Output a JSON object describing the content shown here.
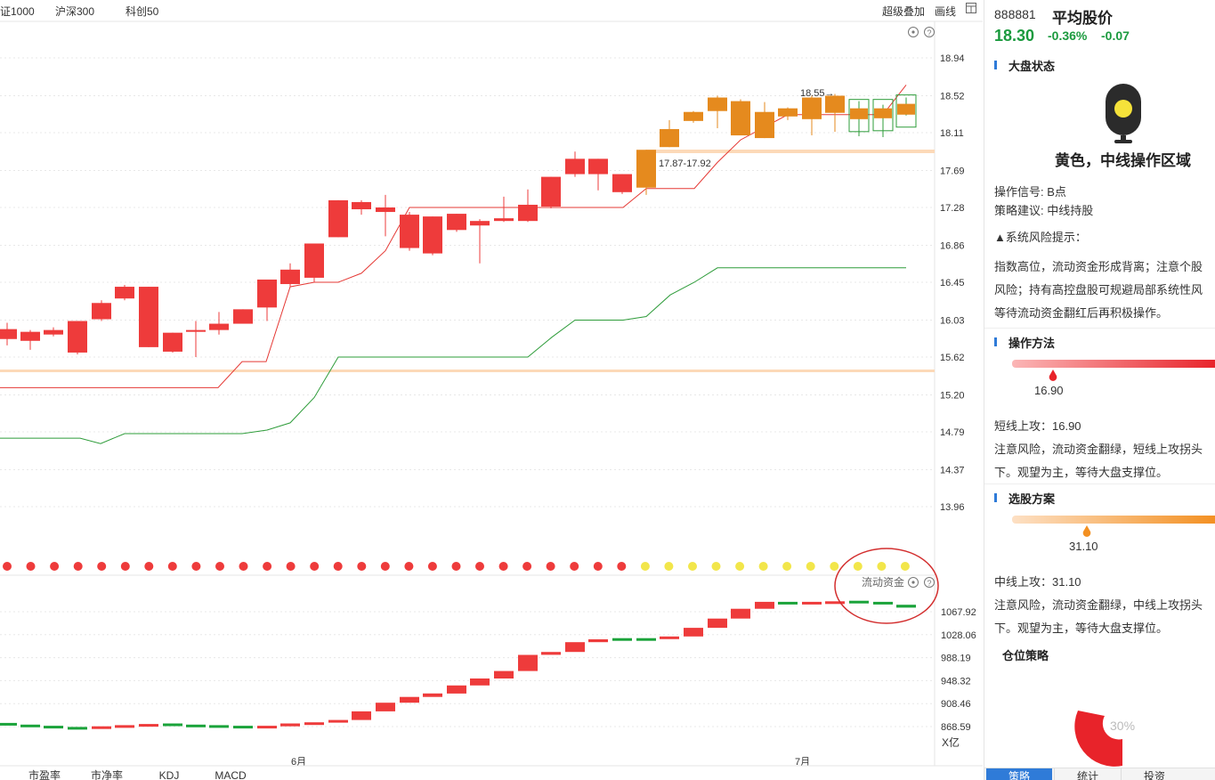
{
  "topbar": {
    "index_tabs": [
      "证1000",
      "沪深300",
      "科创50"
    ],
    "overlay_label": "超级叠加",
    "draw_label": "画线"
  },
  "main_chart": {
    "y_ticks": [
      "18.94",
      "18.52",
      "18.11",
      "17.69",
      "17.28",
      "16.86",
      "16.45",
      "16.03",
      "15.62",
      "15.20",
      "14.79",
      "14.37",
      "13.96"
    ],
    "annotation_peak": "18.55→",
    "annotation_zone": "17.87-17.92"
  },
  "indicator": {
    "label": "流动资金",
    "y_ticks": [
      "1067.92",
      "1028.06",
      "988.19",
      "948.32",
      "908.46",
      "868.59"
    ],
    "unit": "X亿",
    "x_labels": [
      "6月",
      "7月"
    ]
  },
  "bottom_tabs": [
    "市盈率",
    "市净率",
    "KDJ",
    "MACD"
  ],
  "panel": {
    "code": "888881",
    "name": "平均股价",
    "price": "18.30",
    "change_pct": "-0.36%",
    "change_abs": "-0.07",
    "market_state_title": "大盘状态",
    "light_text": "黄色，中线操作区域",
    "signal": "操作信号: B点",
    "suggestion": "策略建议: 中线持股",
    "risk_title": "▲系统风险提示：",
    "risk_line1": "指数高位，流动资金形成背离；注意个股",
    "risk_line2": "风险；持有高控盘股可规避局部系统性风",
    "risk_line3": "等待流动资金翻红后再积极操作。",
    "method_title": "操作方法",
    "method_value": "16.90",
    "method_text1": "短线上攻：16.90",
    "method_text2": "注意风险，流动资金翻绿，短线上攻拐头",
    "method_text3": "下。观望为主，等待大盘支撑位。",
    "pick_title": "选股方案",
    "pick_value": "31.10",
    "pick_text1": "中线上攻：31.10",
    "pick_text2": "注意风险，流动资金翻绿，中线上攻拐头",
    "pick_text3": "下。观望为主，等待大盘支撑位。",
    "position_title": "仓位策略",
    "position_pct": "30%",
    "tabs": [
      "策略",
      "统计",
      "投资"
    ]
  }
}
